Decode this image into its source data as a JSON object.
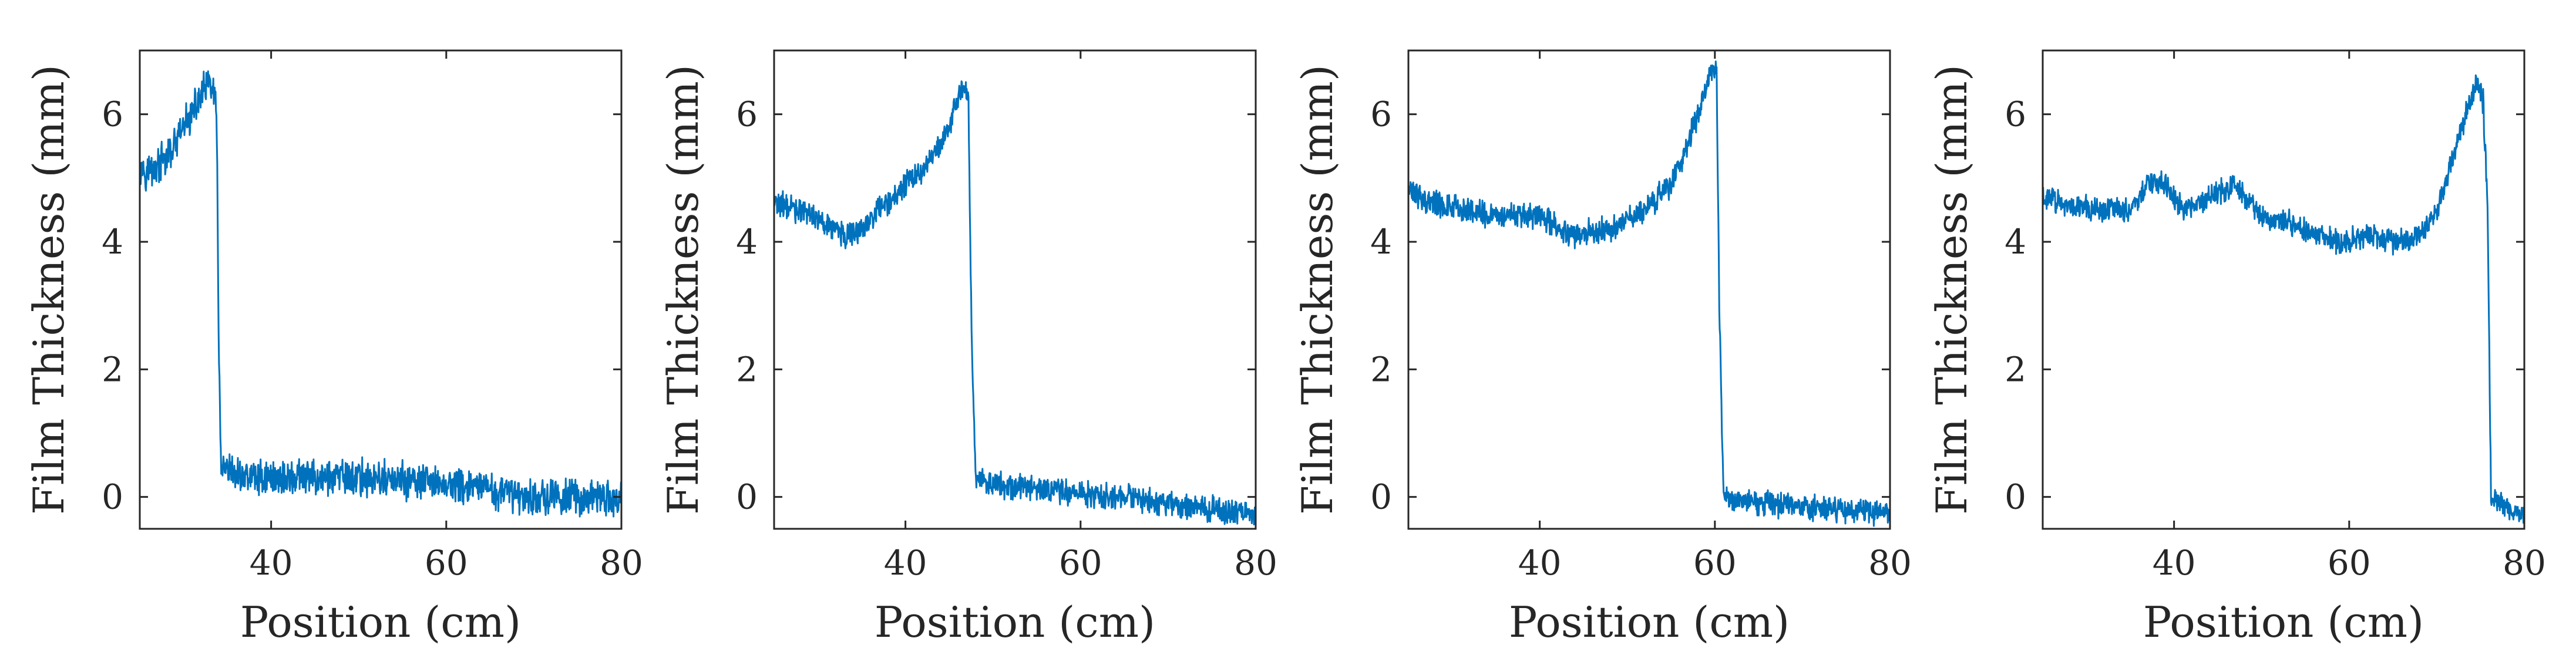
{
  "chart_data": [
    {
      "type": "line",
      "xlabel": "Position (cm)",
      "ylabel": "Film Thickness (mm)",
      "xlim": [
        25,
        80
      ],
      "ylim": [
        -0.5,
        7
      ],
      "xticks": [
        40,
        60,
        80
      ],
      "yticks": [
        0,
        2,
        4,
        6
      ],
      "grid": false,
      "series": [
        {
          "color": "#0072BD",
          "noise": 0.42,
          "x": [
            25,
            26,
            27,
            28,
            29,
            30,
            31,
            32,
            33,
            33.5,
            33.8,
            34.0,
            34.3,
            36,
            40,
            45,
            50,
            55,
            60,
            65,
            70,
            75,
            80
          ],
          "y": [
            5.2,
            5.1,
            5.2,
            5.3,
            5.5,
            5.8,
            6.0,
            6.3,
            6.5,
            6.3,
            5.8,
            2.5,
            0.4,
            0.35,
            0.3,
            0.3,
            0.3,
            0.25,
            0.2,
            0.1,
            0.0,
            0.0,
            -0.05
          ]
        }
      ]
    },
    {
      "type": "line",
      "xlabel": "Position (cm)",
      "ylabel": "Film Thickness (mm)",
      "xlim": [
        25,
        80
      ],
      "ylim": [
        -0.5,
        7
      ],
      "xticks": [
        40,
        60,
        80
      ],
      "yticks": [
        0,
        2,
        4,
        6
      ],
      "grid": false,
      "series": [
        {
          "color": "#0072BD",
          "noise": 0.3,
          "x": [
            25,
            28,
            31,
            33,
            35,
            37,
            40,
            42,
            44,
            45,
            46,
            46.7,
            47.2,
            47.5,
            48,
            50,
            55,
            60,
            65,
            70,
            75,
            80
          ],
          "y": [
            4.6,
            4.5,
            4.3,
            4.1,
            4.2,
            4.5,
            4.9,
            5.1,
            5.5,
            5.8,
            6.3,
            6.5,
            6.2,
            3.0,
            0.25,
            0.2,
            0.15,
            0.05,
            0.0,
            -0.1,
            -0.2,
            -0.25
          ]
        }
      ]
    },
    {
      "type": "line",
      "xlabel": "Position (cm)",
      "ylabel": "Film Thickness (mm)",
      "xlim": [
        25,
        80
      ],
      "ylim": [
        -0.5,
        7
      ],
      "xticks": [
        40,
        60,
        80
      ],
      "yticks": [
        0,
        2,
        4,
        6
      ],
      "grid": false,
      "series": [
        {
          "color": "#0072BD",
          "noise": 0.3,
          "x": [
            25,
            28,
            32,
            36,
            40,
            44,
            48,
            52,
            55,
            57,
            58.5,
            59.5,
            60.2,
            60.5,
            61,
            62,
            66,
            70,
            75,
            80
          ],
          "y": [
            4.8,
            4.6,
            4.5,
            4.4,
            4.4,
            4.1,
            4.2,
            4.5,
            4.9,
            5.6,
            6.2,
            6.7,
            6.8,
            3.0,
            0.0,
            -0.05,
            -0.1,
            -0.15,
            -0.2,
            -0.25
          ]
        }
      ]
    },
    {
      "type": "line",
      "xlabel": "Position (cm)",
      "ylabel": "Film Thickness (mm)",
      "xlim": [
        25,
        80
      ],
      "ylim": [
        -0.5,
        7
      ],
      "xticks": [
        40,
        60,
        80
      ],
      "yticks": [
        0,
        2,
        4,
        6
      ],
      "grid": false,
      "series": [
        {
          "color": "#0072BD",
          "noise": 0.28,
          "x": [
            25,
            28,
            32,
            35,
            37,
            39,
            41,
            44,
            47,
            50,
            53,
            56,
            59,
            62,
            65,
            68,
            70,
            72,
            73.5,
            74.5,
            75.3,
            75.8,
            76.2,
            77,
            80
          ],
          "y": [
            4.7,
            4.6,
            4.5,
            4.5,
            4.9,
            4.9,
            4.5,
            4.7,
            4.9,
            4.4,
            4.3,
            4.1,
            4.0,
            4.1,
            4.0,
            4.1,
            4.5,
            5.4,
            6.1,
            6.5,
            6.2,
            4.5,
            0.0,
            -0.1,
            -0.3
          ]
        }
      ]
    }
  ]
}
